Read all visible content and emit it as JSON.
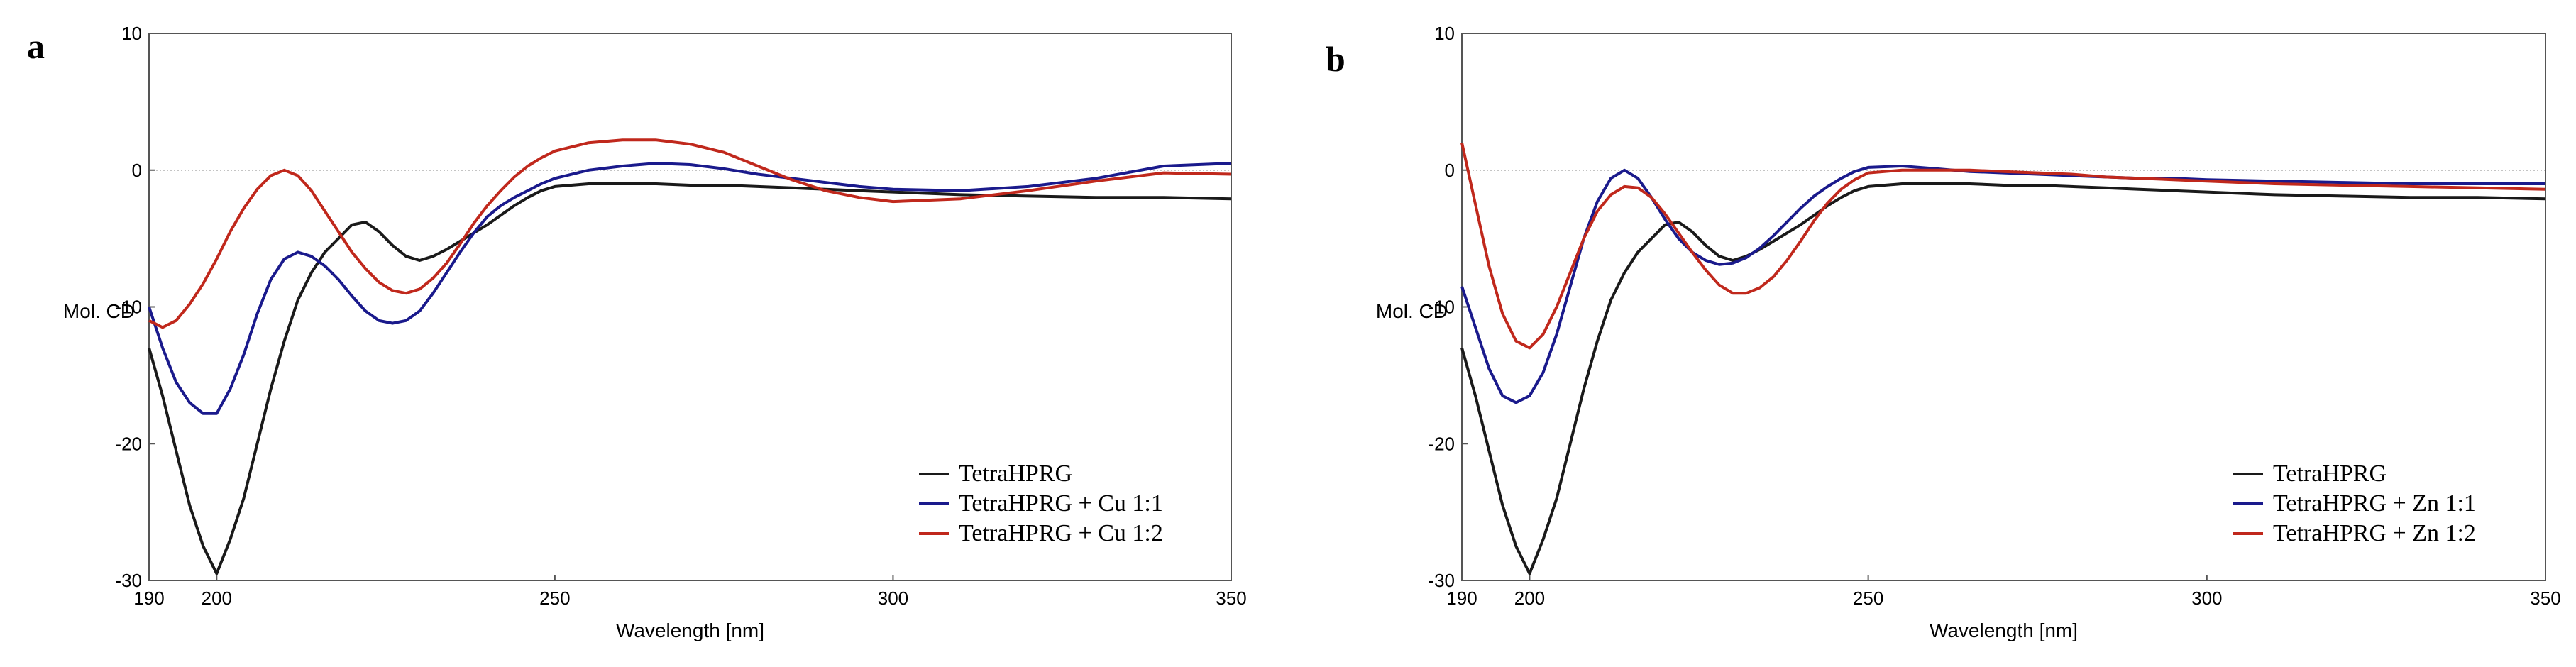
{
  "chart_data": [
    {
      "type": "line",
      "panel_label": "a",
      "xlabel": "Wavelength [nm]",
      "ylabel": "Mol. CD",
      "xlim": [
        190,
        350
      ],
      "ylim": [
        -30,
        10
      ],
      "xticks": [
        190,
        200,
        250,
        300,
        350
      ],
      "yticks": [
        10,
        0,
        -10,
        -20,
        -30
      ],
      "zero_line": true,
      "legend_position": "bottom-right",
      "series": [
        {
          "name": "TetraHPRG",
          "color": "#1a1a1a",
          "x": [
            190,
            192,
            194,
            196,
            198,
            200,
            202,
            204,
            206,
            208,
            210,
            212,
            214,
            216,
            218,
            220,
            222,
            224,
            226,
            228,
            230,
            232,
            234,
            236,
            238,
            240,
            242,
            244,
            246,
            248,
            250,
            255,
            260,
            265,
            270,
            275,
            280,
            285,
            290,
            295,
            300,
            310,
            320,
            330,
            340,
            350
          ],
          "y": [
            -13,
            -16.5,
            -20.5,
            -24.5,
            -27.5,
            -29.5,
            -27,
            -24,
            -20,
            -16,
            -12.5,
            -9.5,
            -7.5,
            -6,
            -5,
            -4,
            -3.8,
            -4.5,
            -5.5,
            -6.3,
            -6.6,
            -6.3,
            -5.8,
            -5.2,
            -4.6,
            -4,
            -3.3,
            -2.6,
            -2,
            -1.5,
            -1.2,
            -1.0,
            -1.0,
            -1.0,
            -1.1,
            -1.1,
            -1.2,
            -1.3,
            -1.4,
            -1.5,
            -1.6,
            -1.8,
            -1.9,
            -2.0,
            -2.0,
            -2.1
          ]
        },
        {
          "name": "TetraHPRG + Cu 1:1",
          "color": "#1a1a8c",
          "x": [
            190,
            192,
            194,
            196,
            198,
            200,
            202,
            204,
            206,
            208,
            210,
            212,
            214,
            216,
            218,
            220,
            222,
            224,
            226,
            228,
            230,
            232,
            234,
            236,
            238,
            240,
            242,
            244,
            246,
            248,
            250,
            255,
            260,
            265,
            270,
            275,
            280,
            285,
            290,
            295,
            300,
            310,
            320,
            330,
            340,
            350
          ],
          "y": [
            -10,
            -13,
            -15.5,
            -17,
            -17.8,
            -17.8,
            -16,
            -13.5,
            -10.5,
            -8,
            -6.5,
            -6,
            -6.3,
            -7,
            -8,
            -9.2,
            -10.3,
            -11,
            -11.2,
            -11,
            -10.3,
            -9,
            -7.5,
            -6,
            -4.6,
            -3.4,
            -2.6,
            -2,
            -1.5,
            -1,
            -0.6,
            0,
            0.3,
            0.5,
            0.4,
            0.1,
            -0.3,
            -0.6,
            -0.9,
            -1.2,
            -1.4,
            -1.5,
            -1.2,
            -0.6,
            0.3,
            0.5
          ]
        },
        {
          "name": "TetraHPRG + Cu 1:2",
          "color": "#c0281c",
          "x": [
            190,
            192,
            194,
            196,
            198,
            200,
            202,
            204,
            206,
            208,
            210,
            212,
            214,
            216,
            218,
            220,
            222,
            224,
            226,
            228,
            230,
            232,
            234,
            236,
            238,
            240,
            242,
            244,
            246,
            248,
            250,
            255,
            260,
            265,
            270,
            275,
            280,
            285,
            290,
            295,
            300,
            310,
            320,
            330,
            340,
            350
          ],
          "y": [
            -11,
            -11.5,
            -11,
            -9.8,
            -8.3,
            -6.5,
            -4.5,
            -2.8,
            -1.4,
            -0.4,
            0,
            -0.4,
            -1.5,
            -3,
            -4.5,
            -6,
            -7.2,
            -8.2,
            -8.8,
            -9,
            -8.7,
            -7.9,
            -6.8,
            -5.4,
            -3.9,
            -2.6,
            -1.5,
            -0.5,
            0.3,
            0.9,
            1.4,
            2,
            2.2,
            2.2,
            1.9,
            1.3,
            0.3,
            -0.7,
            -1.5,
            -2,
            -2.3,
            -2.1,
            -1.5,
            -0.8,
            -0.2,
            -0.3
          ]
        }
      ],
      "legend": [
        "TetraHPRG",
        "TetraHPRG + Cu 1:1",
        "TetraHPRG + Cu 1:2"
      ]
    },
    {
      "type": "line",
      "panel_label": "b",
      "xlabel": "Wavelength [nm]",
      "ylabel": "Mol. CD",
      "xlim": [
        190,
        350
      ],
      "ylim": [
        -30,
        10
      ],
      "xticks": [
        190,
        200,
        250,
        300,
        350
      ],
      "yticks": [
        10,
        0,
        -10,
        -20,
        -30
      ],
      "zero_line": true,
      "legend_position": "bottom-right",
      "series": [
        {
          "name": "TetraHPRG",
          "color": "#1a1a1a",
          "x": [
            190,
            192,
            194,
            196,
            198,
            200,
            202,
            204,
            206,
            208,
            210,
            212,
            214,
            216,
            218,
            220,
            222,
            224,
            226,
            228,
            230,
            232,
            234,
            236,
            238,
            240,
            242,
            244,
            246,
            248,
            250,
            255,
            260,
            265,
            270,
            275,
            280,
            285,
            290,
            295,
            300,
            310,
            320,
            330,
            340,
            350
          ],
          "y": [
            -13,
            -16.5,
            -20.5,
            -24.5,
            -27.5,
            -29.5,
            -27,
            -24,
            -20,
            -16,
            -12.5,
            -9.5,
            -7.5,
            -6,
            -5,
            -4,
            -3.8,
            -4.5,
            -5.5,
            -6.3,
            -6.6,
            -6.3,
            -5.8,
            -5.2,
            -4.6,
            -4,
            -3.3,
            -2.6,
            -2,
            -1.5,
            -1.2,
            -1.0,
            -1.0,
            -1.0,
            -1.1,
            -1.1,
            -1.2,
            -1.3,
            -1.4,
            -1.5,
            -1.6,
            -1.8,
            -1.9,
            -2.0,
            -2.0,
            -2.1
          ]
        },
        {
          "name": "TetraHPRG + Zn 1:1",
          "color": "#1a1a8c",
          "x": [
            190,
            192,
            194,
            196,
            198,
            200,
            202,
            204,
            206,
            208,
            210,
            212,
            214,
            216,
            218,
            220,
            222,
            224,
            226,
            228,
            230,
            232,
            234,
            236,
            238,
            240,
            242,
            244,
            246,
            248,
            250,
            255,
            260,
            265,
            270,
            275,
            280,
            285,
            290,
            295,
            300,
            310,
            320,
            330,
            340,
            350
          ],
          "y": [
            -8.5,
            -11.5,
            -14.5,
            -16.5,
            -17,
            -16.5,
            -14.8,
            -12,
            -8.5,
            -5,
            -2.3,
            -0.6,
            0,
            -0.6,
            -2,
            -3.6,
            -5,
            -6,
            -6.6,
            -6.9,
            -6.8,
            -6.4,
            -5.7,
            -4.8,
            -3.8,
            -2.8,
            -1.9,
            -1.2,
            -0.6,
            -0.1,
            0.2,
            0.3,
            0.1,
            -0.1,
            -0.2,
            -0.3,
            -0.4,
            -0.5,
            -0.6,
            -0.6,
            -0.7,
            -0.8,
            -0.9,
            -1.0,
            -1.0,
            -1.0
          ]
        },
        {
          "name": "TetraHPRG + Zn 1:2",
          "color": "#c0281c",
          "x": [
            190,
            192,
            194,
            196,
            198,
            200,
            202,
            204,
            206,
            208,
            210,
            212,
            214,
            216,
            218,
            220,
            222,
            224,
            226,
            228,
            230,
            232,
            234,
            236,
            238,
            240,
            242,
            244,
            246,
            248,
            250,
            255,
            260,
            265,
            270,
            275,
            280,
            285,
            290,
            295,
            300,
            310,
            320,
            330,
            340,
            350
          ],
          "y": [
            2,
            -2.5,
            -7,
            -10.5,
            -12.5,
            -13,
            -12,
            -10,
            -7.5,
            -5,
            -3,
            -1.8,
            -1.2,
            -1.3,
            -2,
            -3.2,
            -4.6,
            -6,
            -7.3,
            -8.4,
            -9,
            -9,
            -8.6,
            -7.8,
            -6.6,
            -5.2,
            -3.7,
            -2.4,
            -1.4,
            -0.7,
            -0.2,
            0,
            0,
            0,
            -0.1,
            -0.2,
            -0.3,
            -0.5,
            -0.6,
            -0.7,
            -0.8,
            -1.0,
            -1.1,
            -1.2,
            -1.3,
            -1.4
          ]
        }
      ],
      "legend": [
        "TetraHPRG",
        "TetraHPRG + Zn 1:1",
        "TetraHPRG + Zn 1:2"
      ]
    }
  ]
}
